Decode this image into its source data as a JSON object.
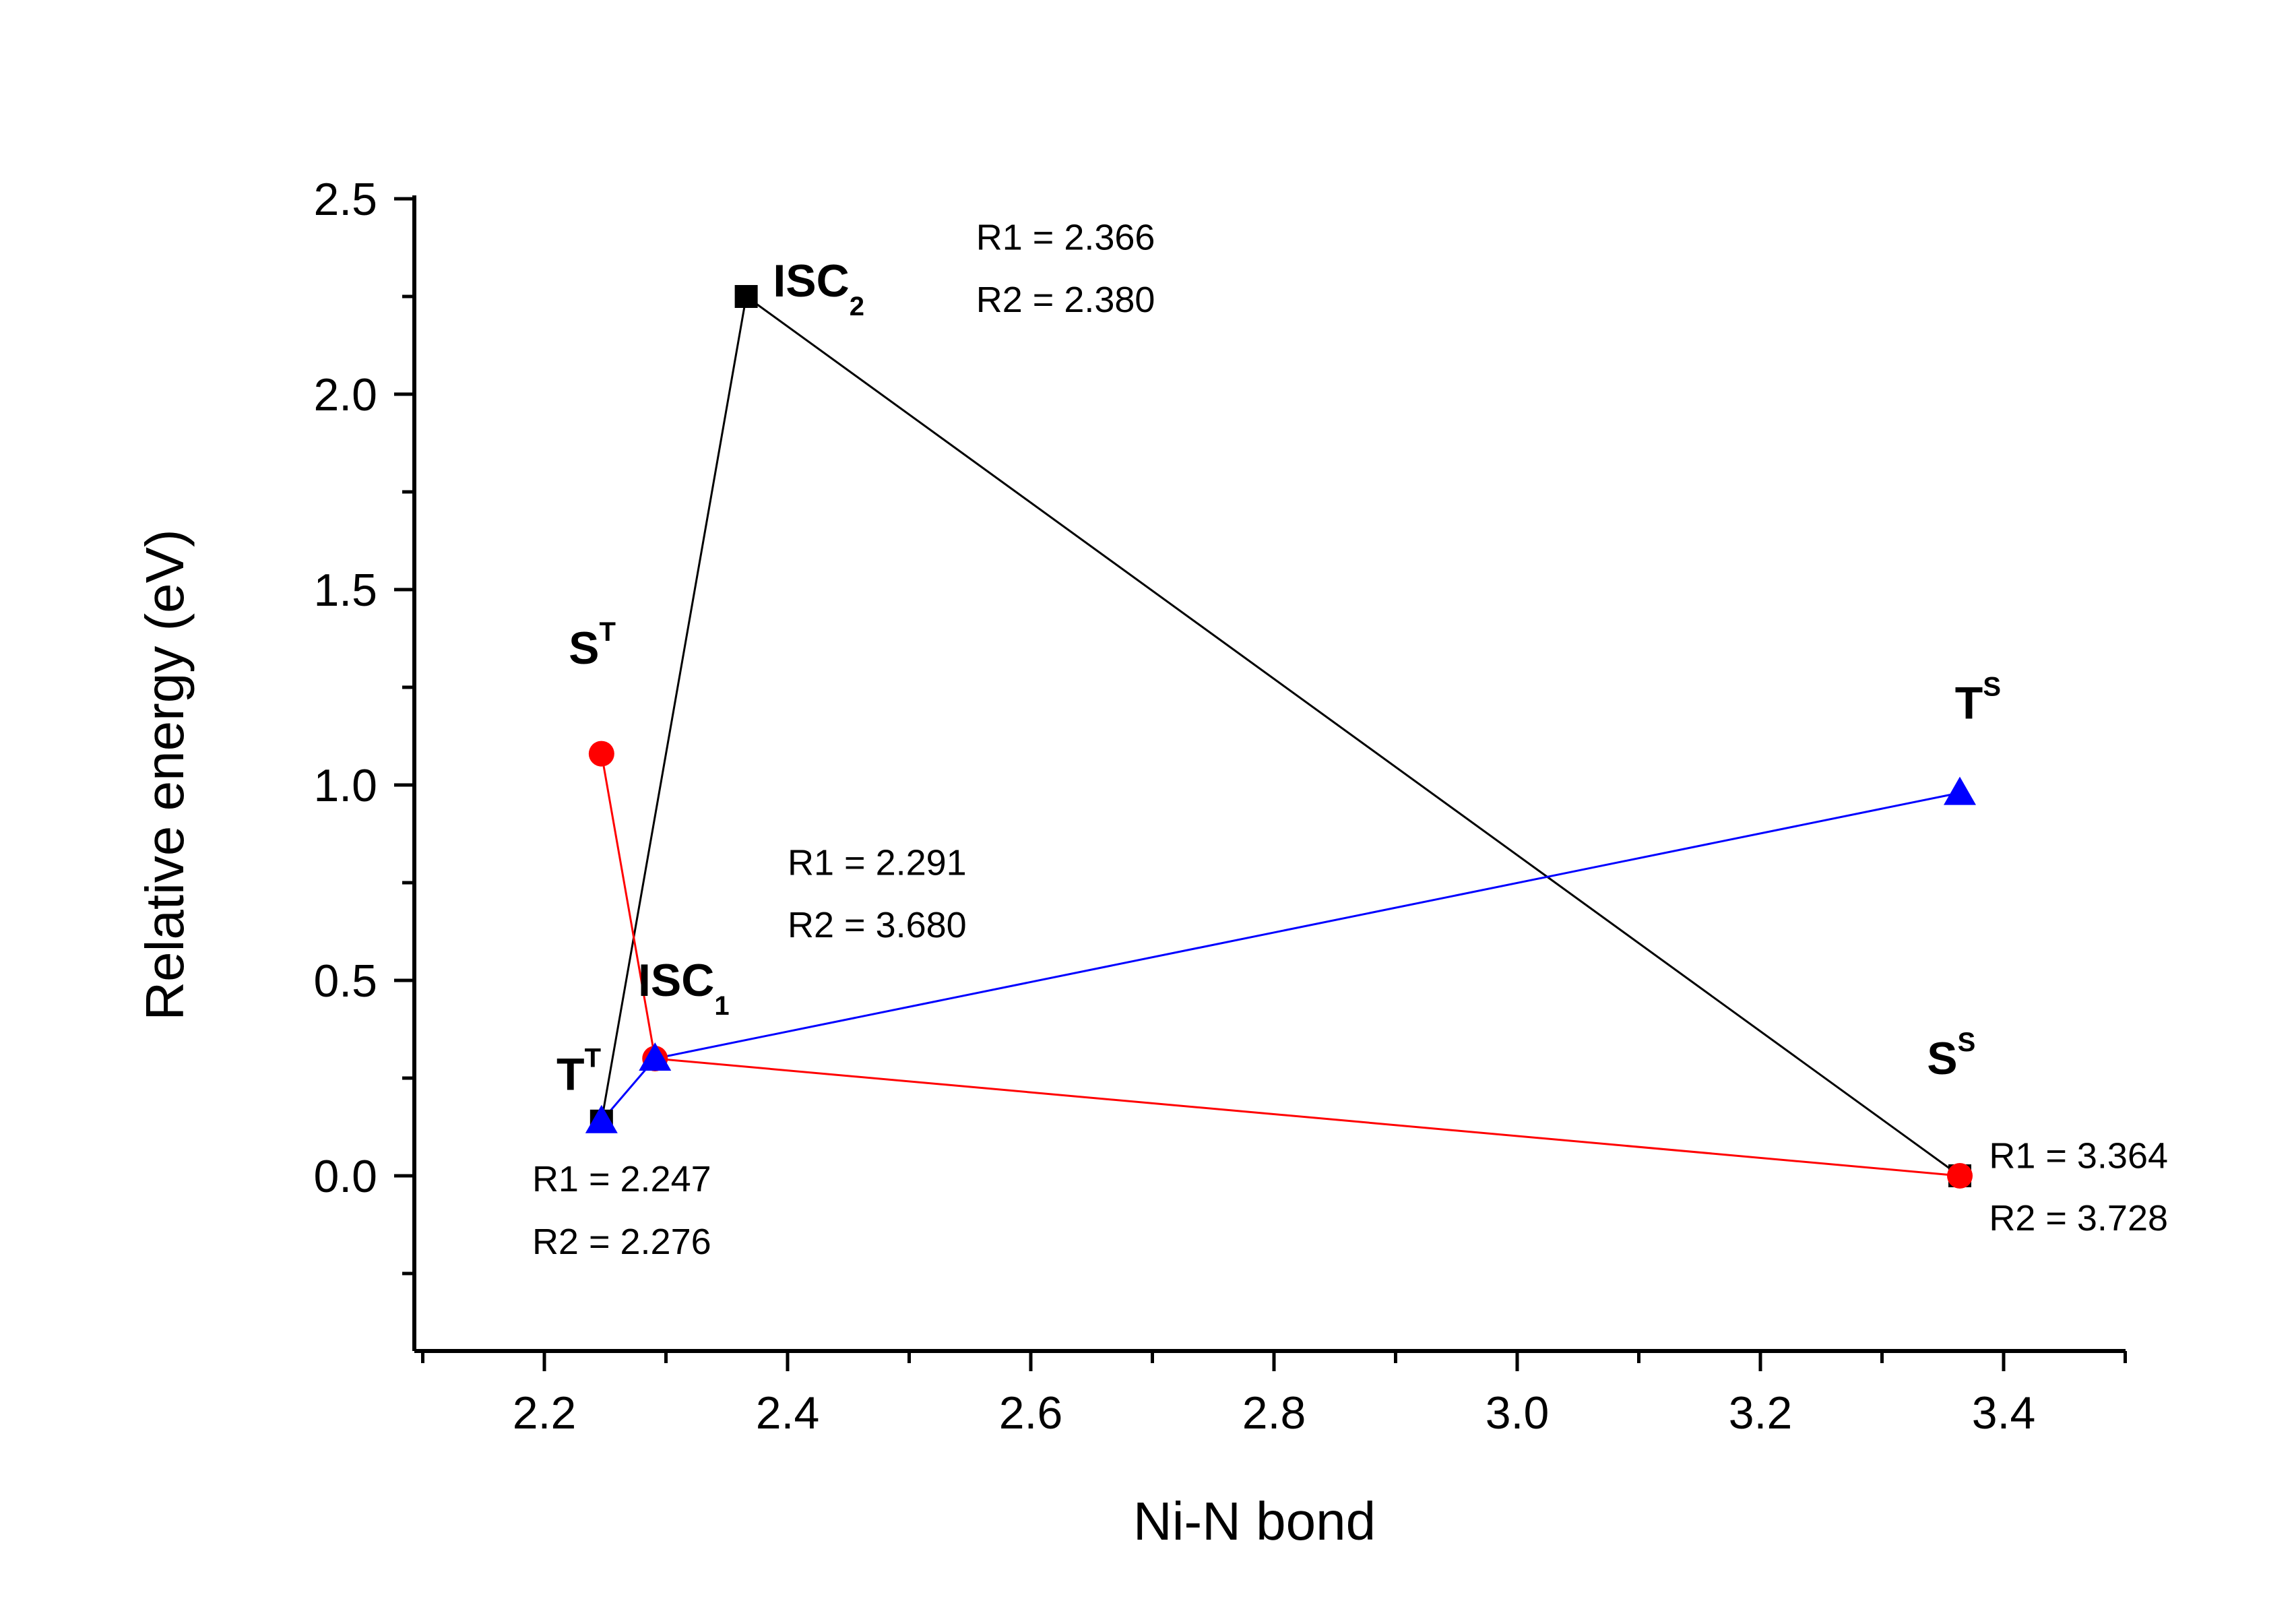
{
  "chart_data": {
    "type": "scatter",
    "title": "",
    "xlabel": "Ni-N bond",
    "ylabel": "Relative energy (eV)",
    "xlim": [
      2.1,
      3.5
    ],
    "ylim": [
      -0.45,
      2.5
    ],
    "x_ticks": [
      2.2,
      2.4,
      2.6,
      2.8,
      3.0,
      3.2,
      3.4
    ],
    "y_ticks": [
      0.0,
      0.5,
      1.0,
      1.5,
      2.0,
      2.5
    ],
    "x_tick_labels": [
      "2.2",
      "2.4",
      "2.6",
      "2.8",
      "3.0",
      "3.2",
      "3.4"
    ],
    "y_tick_labels": [
      "0.0",
      "0.5",
      "1.0",
      "1.5",
      "2.0",
      "2.5"
    ],
    "grid": false,
    "series": [
      {
        "name": "black",
        "color": "#000000",
        "marker": "square",
        "points": [
          {
            "x": 2.247,
            "y": 0.14
          },
          {
            "x": 2.366,
            "y": 2.25
          },
          {
            "x": 3.364,
            "y": 0.0
          }
        ]
      },
      {
        "name": "red",
        "color": "#ff0000",
        "marker": "circle",
        "points": [
          {
            "x": 2.247,
            "y": 1.08
          },
          {
            "x": 2.291,
            "y": 0.3
          },
          {
            "x": 3.364,
            "y": 0.0
          }
        ]
      },
      {
        "name": "blue",
        "color": "#0000ff",
        "marker": "triangle",
        "points": [
          {
            "x": 2.247,
            "y": 0.14
          },
          {
            "x": 2.291,
            "y": 0.3
          },
          {
            "x": 3.364,
            "y": 0.98
          }
        ]
      }
    ],
    "state_labels": [
      {
        "id": "isc2",
        "main": "ISC",
        "sup": "",
        "sub": "2",
        "x": 2.388,
        "y": 2.25
      },
      {
        "id": "st",
        "main": "S",
        "sup": "T",
        "sub": "",
        "x": 2.22,
        "y": 1.31
      },
      {
        "id": "ts",
        "main": "T",
        "sup": "S",
        "sub": "",
        "x": 3.36,
        "y": 1.17
      },
      {
        "id": "isc1",
        "main": "ISC",
        "sup": "",
        "sub": "1",
        "x": 2.277,
        "y": 0.46
      },
      {
        "id": "tt",
        "main": "T",
        "sup": "T",
        "sub": "",
        "x": 2.21,
        "y": 0.22
      },
      {
        "id": "ss",
        "main": "S",
        "sup": "S",
        "sub": "",
        "x": 3.337,
        "y": 0.26
      }
    ],
    "annotations": [
      {
        "id": "isc2-r1",
        "text": "R1 = 2.366",
        "x": 2.555,
        "y": 2.37
      },
      {
        "id": "isc2-r2",
        "text": "R2 = 2.380",
        "x": 2.555,
        "y": 2.21
      },
      {
        "id": "isc1-r1",
        "text": "R1 = 2.291",
        "x": 2.4,
        "y": 0.77
      },
      {
        "id": "isc1-r2",
        "text": "R2 = 3.680",
        "x": 2.4,
        "y": 0.61
      },
      {
        "id": "tt-r1",
        "text": "R1 = 2.247",
        "x": 2.19,
        "y": -0.04
      },
      {
        "id": "tt-r2",
        "text": "R2 = 2.276",
        "x": 2.19,
        "y": -0.2
      },
      {
        "id": "ss-r1",
        "text": "R1 = 3.364",
        "x": 3.388,
        "y": 0.02
      },
      {
        "id": "ss-r2",
        "text": "R2 = 3.728",
        "x": 3.388,
        "y": -0.14
      }
    ]
  }
}
